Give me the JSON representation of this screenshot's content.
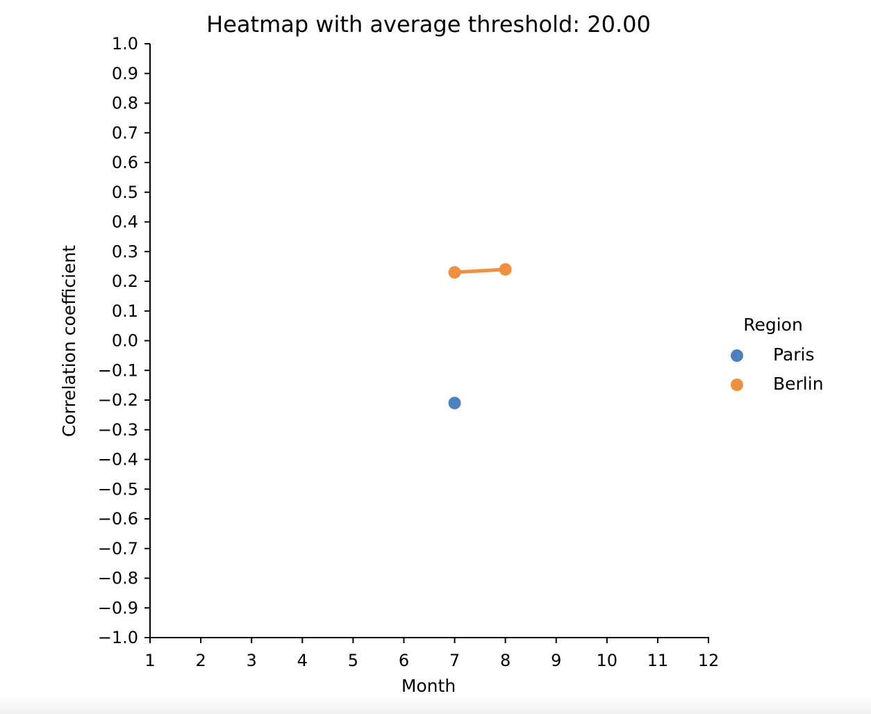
{
  "chart_data": {
    "type": "line",
    "title": "Heatmap with average threshold: 20.00",
    "xlabel": "Month",
    "ylabel": "Correlation coefficient",
    "xlim": [
      1,
      12
    ],
    "ylim": [
      -1.0,
      1.0
    ],
    "x_ticks": [
      "1",
      "2",
      "3",
      "4",
      "5",
      "6",
      "7",
      "8",
      "9",
      "10",
      "11",
      "12"
    ],
    "y_ticks": [
      "1.0",
      "0.9",
      "0.8",
      "0.7",
      "0.6",
      "0.5",
      "0.4",
      "0.3",
      "0.2",
      "0.1",
      "0.0",
      "−0.1",
      "−0.2",
      "−0.3",
      "−0.4",
      "−0.5",
      "−0.6",
      "−0.7",
      "−0.8",
      "−0.9",
      "−1.0"
    ],
    "grid": false,
    "legend": {
      "title": "Region",
      "placement": "right"
    },
    "series": [
      {
        "name": "Paris",
        "color": "#4c81bf",
        "points": [
          {
            "x": 7,
            "y": -0.21
          }
        ]
      },
      {
        "name": "Berlin",
        "color": "#f08f3c",
        "points": [
          {
            "x": 7,
            "y": 0.23
          },
          {
            "x": 8,
            "y": 0.24
          }
        ]
      }
    ]
  }
}
